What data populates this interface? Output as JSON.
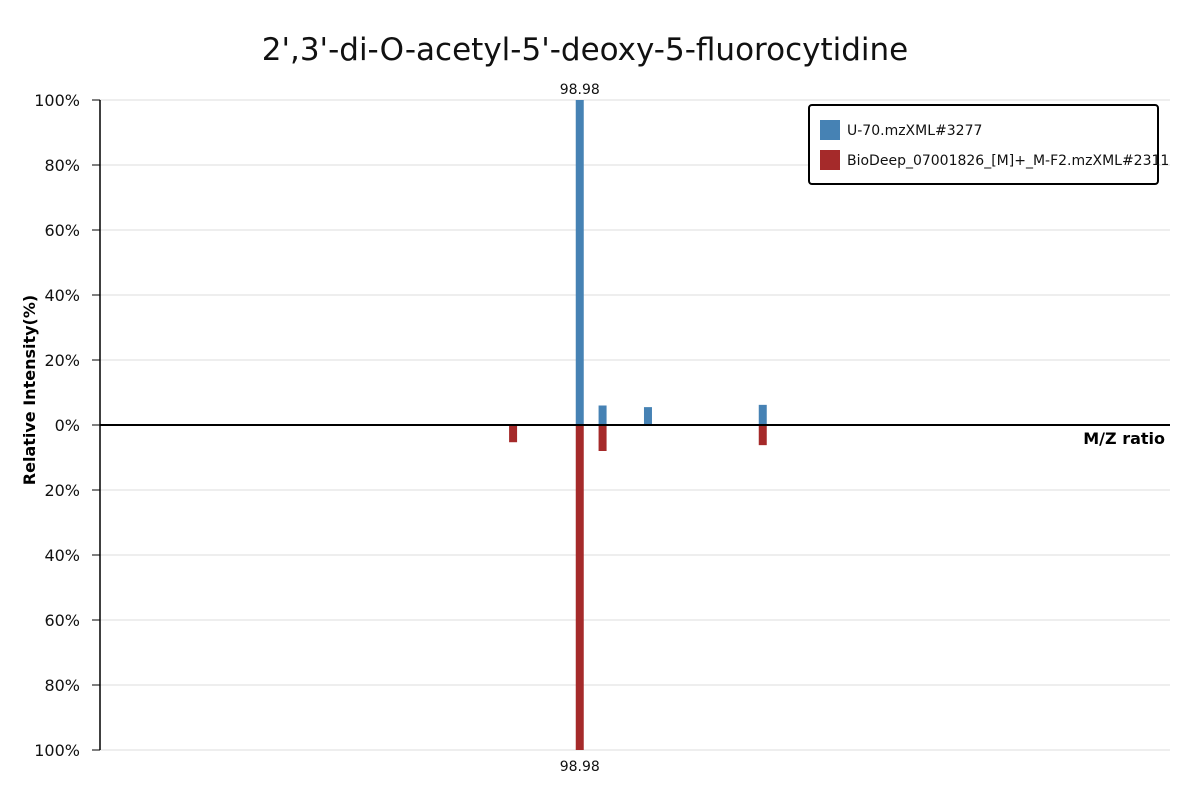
{
  "chart_data": {
    "type": "bar",
    "title": "2',3'-di-O-acetyl-5'-deoxy-5-fluorocytidine",
    "xlabel": "M/Z ratio",
    "ylabel": "Relative Intensity(%)",
    "yticks_top": [
      "100%",
      "80%",
      "60%",
      "40%",
      "20%",
      "0%"
    ],
    "yticks_bottom": [
      "20%",
      "40%",
      "60%",
      "80%",
      "100%"
    ],
    "ylim": [
      -100,
      100
    ],
    "xlim": [
      25,
      190
    ],
    "grid": true,
    "legend_position": "top-right",
    "series": [
      {
        "name": "U-70.mzXML#3277",
        "color": "#4682B4",
        "direction": "up",
        "x": [
          98.98,
          102.5,
          109.5,
          127.2
        ],
        "values": [
          100,
          6,
          5.5,
          6.2
        ]
      },
      {
        "name": "BioDeep_07001826_[M]+_M-F2.mzXML#2311",
        "color": "#A52A2A",
        "direction": "down",
        "x": [
          88.7,
          98.98,
          102.5,
          127.2
        ],
        "values": [
          5.3,
          100,
          8,
          6.2
        ]
      }
    ],
    "annotations": [
      {
        "series": 0,
        "x": 98.98,
        "label": "98.98"
      },
      {
        "series": 1,
        "x": 98.98,
        "label": "98.98"
      }
    ]
  }
}
